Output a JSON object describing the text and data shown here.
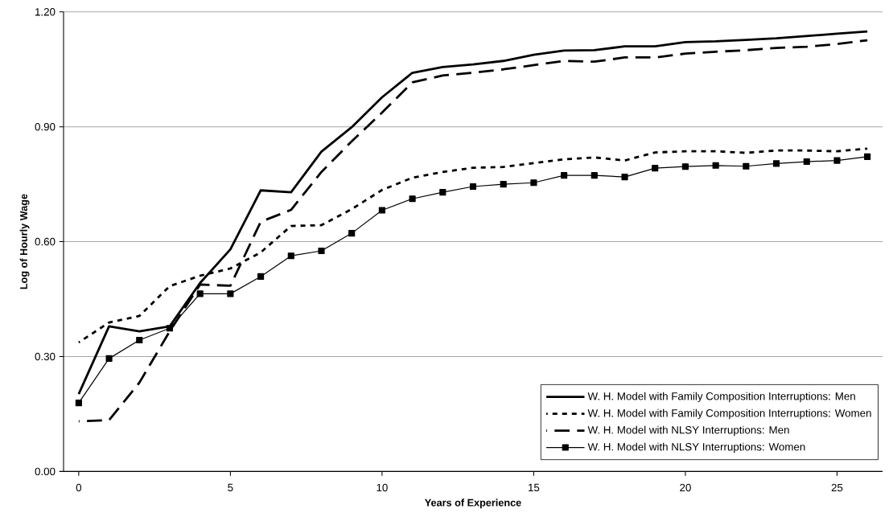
{
  "chart_data": {
    "type": "line",
    "xlabel": "Years of Experience",
    "ylabel": "Log of Hourly Wage",
    "x": [
      0,
      1,
      2,
      3,
      4,
      5,
      6,
      7,
      8,
      9,
      10,
      11,
      12,
      13,
      14,
      15,
      16,
      17,
      18,
      19,
      20,
      21,
      22,
      23,
      24,
      25,
      26
    ],
    "series": [
      {
        "name": "W. H. Model with Family Composition Interruptions:  Men",
        "color": "#000000",
        "line_style": "solid",
        "marker": "none",
        "values": [
          0.202,
          0.379,
          0.366,
          0.379,
          0.492,
          0.58,
          0.734,
          0.729,
          0.835,
          0.899,
          0.977,
          1.041,
          1.056,
          1.063,
          1.072,
          1.088,
          1.099,
          1.1,
          1.11,
          1.11,
          1.121,
          1.123,
          1.127,
          1.131,
          1.137,
          1.143,
          1.149
        ]
      },
      {
        "name": "W. H. Model with Family Composition Interruptions:  Women",
        "color": "#000000",
        "line_style": "dotted",
        "marker": "none",
        "values": [
          0.337,
          0.389,
          0.406,
          0.484,
          0.511,
          0.53,
          0.572,
          0.641,
          0.643,
          0.685,
          0.735,
          0.767,
          0.782,
          0.793,
          0.795,
          0.805,
          0.815,
          0.82,
          0.812,
          0.833,
          0.836,
          0.836,
          0.832,
          0.838,
          0.838,
          0.836,
          0.843
        ]
      },
      {
        "name": "W. H. Model with NLSY Interruptions:  Men",
        "color": "#000000",
        "line_style": "dashed",
        "marker": "none",
        "values": [
          0.131,
          0.134,
          0.232,
          0.366,
          0.488,
          0.485,
          0.652,
          0.683,
          0.782,
          0.862,
          0.937,
          1.016,
          1.034,
          1.041,
          1.05,
          1.061,
          1.072,
          1.07,
          1.081,
          1.081,
          1.091,
          1.096,
          1.1,
          1.106,
          1.109,
          1.116,
          1.126
        ]
      },
      {
        "name": "W. H. Model with NLSY Interruptions:  Women",
        "color": "#000000",
        "line_style": "solid",
        "marker": "square",
        "values": [
          0.179,
          0.295,
          0.343,
          0.374,
          0.464,
          0.464,
          0.509,
          0.563,
          0.576,
          0.622,
          0.682,
          0.712,
          0.729,
          0.744,
          0.75,
          0.754,
          0.773,
          0.773,
          0.769,
          0.792,
          0.796,
          0.799,
          0.797,
          0.804,
          0.809,
          0.812,
          0.822
        ]
      }
    ],
    "xlim": [
      -0.5,
      26.5
    ],
    "xticks": [
      0,
      5,
      10,
      15,
      20,
      25
    ],
    "ylim": [
      0,
      1.2
    ],
    "yticks": [
      {
        "value": 0,
        "label": "0.00"
      },
      {
        "value": 0.3,
        "label": "0.30"
      },
      {
        "value": 0.6,
        "label": "0.60"
      },
      {
        "value": 0.9,
        "label": "0.90"
      },
      {
        "value": 1.2,
        "label": "1.20"
      }
    ],
    "grid": "y",
    "legend": "bottom right"
  }
}
